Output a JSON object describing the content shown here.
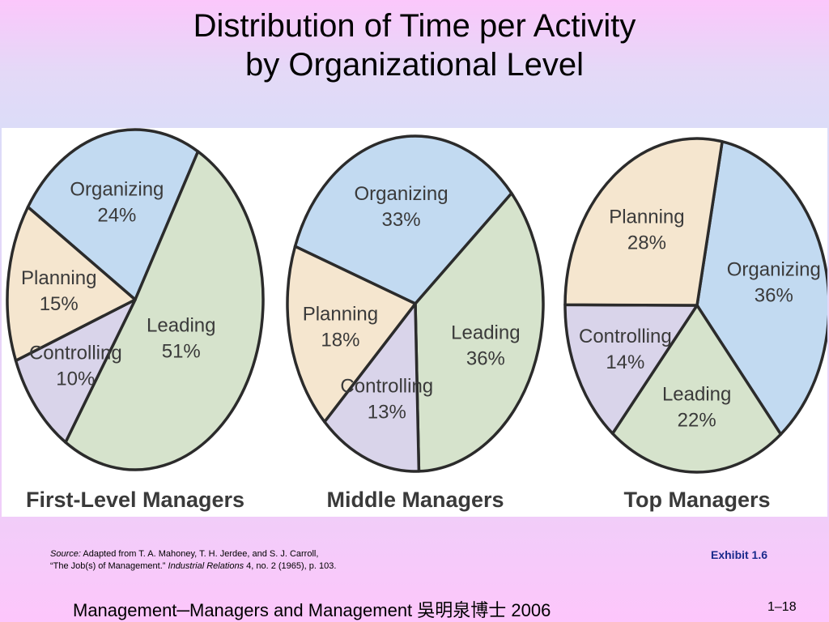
{
  "slide": {
    "title_line1": "Distribution of Time per Activity",
    "title_line2": "by Organizational Level",
    "source_label": "Source:",
    "source_line1_rest": " Adapted from T. A. Mahoney, T. H. Jerdee, and S. J. Carroll,",
    "source_line2_a": "“The Job(s) of Management.” ",
    "source_line2_b": "Industrial Relations",
    "source_line2_c": " 4, no. 2 (1965), p. 103.",
    "exhibit": "Exhibit 1.6",
    "footer": "Management─Managers and Management  吳明泉博士  2006",
    "page_number": "1–18"
  },
  "chart_data": [
    {
      "type": "pie",
      "title": "First-Level Managers",
      "categories": [
        "Organizing",
        "Leading",
        "Controlling",
        "Planning"
      ],
      "values": [
        24,
        51,
        10,
        15
      ],
      "colors": [
        "#c2daf1",
        "#d6e3cc",
        "#d9d4ea",
        "#f5e6cf"
      ]
    },
    {
      "type": "pie",
      "title": "Middle Managers",
      "categories": [
        "Organizing",
        "Leading",
        "Controlling",
        "Planning"
      ],
      "values": [
        33,
        36,
        13,
        18
      ],
      "colors": [
        "#c2daf1",
        "#d6e3cc",
        "#d9d4ea",
        "#f5e6cf"
      ]
    },
    {
      "type": "pie",
      "title": "Top Managers",
      "categories": [
        "Organizing",
        "Leading",
        "Controlling",
        "Planning"
      ],
      "values": [
        36,
        22,
        14,
        28
      ],
      "colors": [
        "#c2daf1",
        "#d6e3cc",
        "#d9d4ea",
        "#f5e6cf"
      ]
    }
  ]
}
